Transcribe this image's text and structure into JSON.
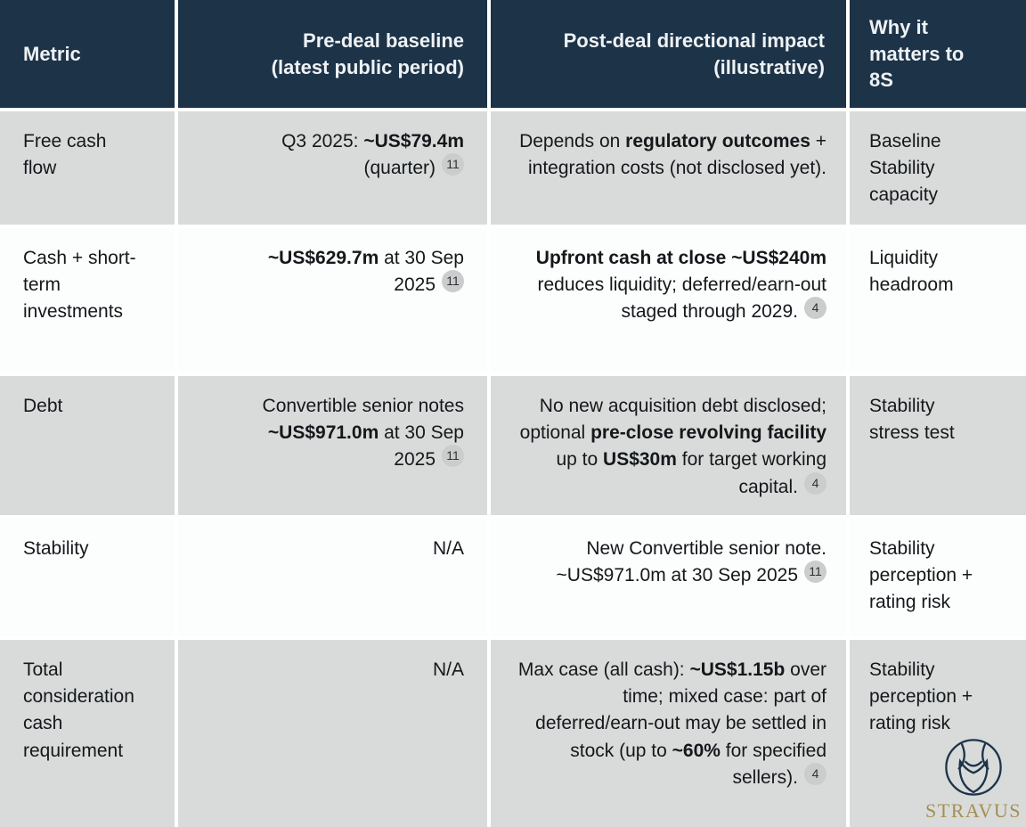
{
  "header": {
    "columns": [
      {
        "id": "metric",
        "label": "Metric"
      },
      {
        "id": "baseline",
        "label": "Pre-deal baseline (latest public period)"
      },
      {
        "id": "impact",
        "label": "Post-deal directional impact (illustrative)"
      },
      {
        "id": "why",
        "label": "Why it matters to 8S"
      }
    ]
  },
  "rows": [
    {
      "metric": "Free cash flow",
      "baseline": [
        {
          "text": "Q3 2025: "
        },
        {
          "text": "~US$79.4m",
          "bold": true
        },
        {
          "text": " (quarter)"
        },
        {
          "badge": "11"
        }
      ],
      "impact": [
        {
          "text": "Depends on "
        },
        {
          "text": "regulatory outcomes",
          "bold": true
        },
        {
          "text": " + integration costs (not disclosed yet)."
        }
      ],
      "why": "Baseline Stability capacity"
    },
    {
      "metric": "Cash + short-term investments",
      "baseline": [
        {
          "text": "~US$629.7m",
          "bold": true
        },
        {
          "text": " at 30 Sep 2025"
        },
        {
          "badge": "11"
        }
      ],
      "impact": [
        {
          "text": "Upfront cash at close ~US$240m",
          "bold": true
        },
        {
          "text": " reduces liquidity; deferred/earn-out staged through 2029."
        },
        {
          "badge": "4"
        }
      ],
      "why": "Liquidity headroom"
    },
    {
      "metric": "Debt",
      "baseline": [
        {
          "text": "Convertible senior notes "
        },
        {
          "text": "~US$971.0m",
          "bold": true
        },
        {
          "text": " at 30 Sep 2025"
        },
        {
          "badge": "11"
        }
      ],
      "impact": [
        {
          "text": "No new acquisition debt disclosed; optional "
        },
        {
          "text": "pre-close revolving facility",
          "bold": true
        },
        {
          "text": " up to "
        },
        {
          "text": "US$30m",
          "bold": true
        },
        {
          "text": " for target working capital."
        },
        {
          "badge": "4"
        }
      ],
      "why": "Stability stress test"
    },
    {
      "metric": "Stability",
      "baseline": [
        {
          "text": "N/A"
        }
      ],
      "impact": [
        {
          "text": "New Convertible senior note. ~US$971.0m at 30 Sep 2025"
        },
        {
          "badge": "11"
        }
      ],
      "why": "Stability perception + rating risk"
    },
    {
      "metric": "Total consideration cash requirement",
      "baseline": [
        {
          "text": "N/A"
        }
      ],
      "impact": [
        {
          "text": "Max case (all cash): "
        },
        {
          "text": "~US$1.15b",
          "bold": true
        },
        {
          "text": " over time; mixed case: part of deferred/earn-out may be settled in stock (up to "
        },
        {
          "text": "~60%",
          "bold": true
        },
        {
          "text": " for specified sellers)."
        },
        {
          "badge": "4"
        }
      ],
      "why": "Stability perception + rating risk"
    }
  ],
  "brand": {
    "name": "STRAVUS"
  },
  "colors": {
    "header_bg": "#1d3348",
    "header_text": "#eef2f5",
    "row_alt_bg": "#d8dbda",
    "row_bg": "#fcfdfd",
    "body_text": "#14181b",
    "badge_bg": "#cacdcc",
    "brand_gold": "#a58f52",
    "logo_navy": "#1d3349"
  }
}
